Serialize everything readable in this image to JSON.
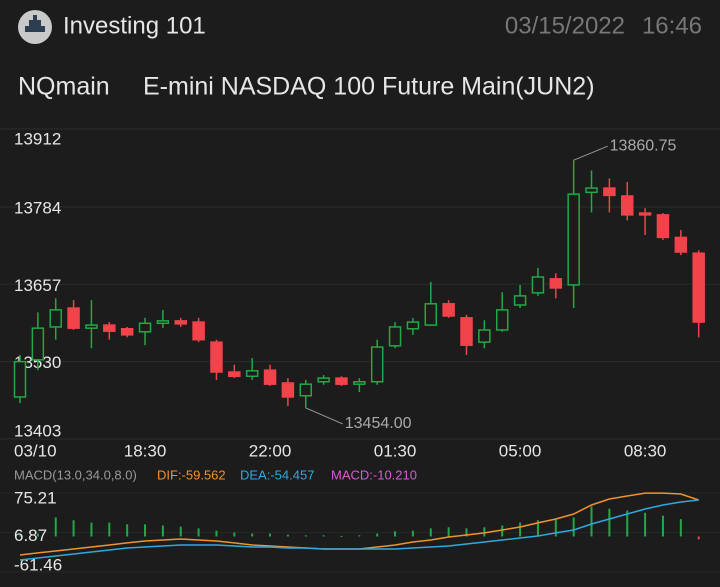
{
  "header": {
    "app_name": "Investing 101",
    "date": "03/15/2022",
    "time": "16:46"
  },
  "chart_data": [
    {
      "type": "candlestick",
      "title": "NQmain",
      "subtitle": "E-mini NASDAQ 100 Future Main(JUN2)",
      "categories": [
        "03/10",
        null,
        null,
        null,
        null,
        null,
        null,
        "18:30",
        null,
        null,
        null,
        null,
        null,
        null,
        "22:00",
        null,
        null,
        null,
        null,
        null,
        null,
        "01:30",
        null,
        null,
        null,
        null,
        null,
        null,
        "05:00",
        null,
        null,
        null,
        null,
        null,
        null,
        "08:30",
        null,
        null,
        null
      ],
      "open": [
        13472,
        13533,
        13587,
        13618,
        13585,
        13590,
        13584,
        13579,
        13593,
        13597,
        13595,
        13562,
        13513,
        13506,
        13516,
        13495,
        13474,
        13497,
        13503,
        13493,
        13497,
        13556,
        13584,
        13590,
        13625,
        13602,
        13562,
        13582,
        13623,
        13643,
        13666,
        13656,
        13808,
        13815,
        13802,
        13774,
        13771,
        13734,
        13708
      ],
      "close": [
        13530,
        13585,
        13615,
        13585,
        13590,
        13580,
        13574,
        13593,
        13597,
        13592,
        13566,
        13513,
        13506,
        13515,
        13493,
        13472,
        13493,
        13503,
        13493,
        13497,
        13554,
        13587,
        13595,
        13625,
        13605,
        13557,
        13582,
        13615,
        13638,
        13669,
        13651,
        13805,
        13815,
        13803,
        13771,
        13771,
        13734,
        13710,
        13595
      ],
      "high": [
        13541,
        13611,
        13634,
        13631,
        13631,
        13595,
        13587,
        13602,
        13615,
        13602,
        13602,
        13566,
        13525,
        13536,
        13525,
        13503,
        13500,
        13508,
        13506,
        13503,
        13566,
        13595,
        13602,
        13661,
        13631,
        13607,
        13598,
        13644,
        13656,
        13684,
        13675,
        13860.75,
        13844,
        13831,
        13825,
        13782,
        13774,
        13746,
        13713
      ],
      "low": [
        13462,
        13516,
        13566,
        13582,
        13552,
        13566,
        13570,
        13557,
        13585,
        13587,
        13562,
        13500,
        13503,
        13500,
        13490,
        13457,
        13454,
        13492,
        13490,
        13480,
        13492,
        13552,
        13574,
        13589,
        13602,
        13541,
        13552,
        13579,
        13618,
        13638,
        13634,
        13618,
        13775,
        13775,
        13762,
        13738,
        13730,
        13705,
        13570
      ],
      "up_color": "#22a846",
      "down_color": "#f0434a",
      "ylim": [
        13403,
        13912
      ],
      "yticks": [
        13912,
        13784,
        13657,
        13530,
        13403
      ],
      "grid": true,
      "max_label": "13860.75",
      "min_label": "13454.00"
    },
    {
      "type": "macd",
      "label": "MACD(13.0,34.0,8.0)",
      "ylim": [
        -61.46,
        75.21
      ],
      "yticks": [
        75.21,
        6.87,
        -61.46
      ],
      "series": [
        {
          "name": "DIF:-59.562",
          "kind": "line",
          "color": "#f0922e",
          "values": [
            -32,
            -28.5,
            -25.1,
            -21.6,
            -18.2,
            -14.7,
            -11.2,
            -7.8,
            -6.1,
            -4.3,
            -6.1,
            -7.8,
            -11.2,
            -14.7,
            -16.4,
            -18.2,
            -19.9,
            -21.6,
            -21.6,
            -21.6,
            -18.2,
            -14.7,
            -9.5,
            -6.1,
            -0.9,
            2.6,
            6.1,
            11.2,
            16.4,
            23.4,
            30.3,
            38.9,
            54.5,
            64.9,
            70.1,
            75,
            75,
            73.5,
            63.1
          ]
        },
        {
          "name": "DEA:-54.457",
          "kind": "line",
          "color": "#2fa8e0",
          "values": [
            -40.7,
            -37.2,
            -33.7,
            -30.3,
            -26.8,
            -23.4,
            -19.9,
            -18.2,
            -16.4,
            -14.7,
            -14.7,
            -14.7,
            -16.4,
            -18.2,
            -18.2,
            -19.9,
            -19.9,
            -21.6,
            -21.6,
            -21.6,
            -21.6,
            -21.6,
            -19.9,
            -18.2,
            -16.4,
            -13,
            -9.5,
            -6.1,
            -2.6,
            0.9,
            6.1,
            11.2,
            21.6,
            30.3,
            38.9,
            47.6,
            54.5,
            59.7,
            63.1
          ]
        },
        {
          "name": "MACD:-10.210",
          "kind": "bar",
          "color": "#d65cd6",
          "up_color": "#22a846",
          "down_color": "#f0434a",
          "values": [
            2,
            5,
            33,
            28,
            24,
            24,
            21,
            21,
            19,
            17,
            14,
            10,
            7,
            5,
            5,
            3,
            2,
            2,
            1,
            2,
            5,
            9,
            10,
            14,
            16,
            14,
            16,
            19,
            24,
            28,
            31,
            33,
            52,
            48,
            45,
            41,
            36,
            30,
            -5
          ]
        }
      ]
    }
  ]
}
